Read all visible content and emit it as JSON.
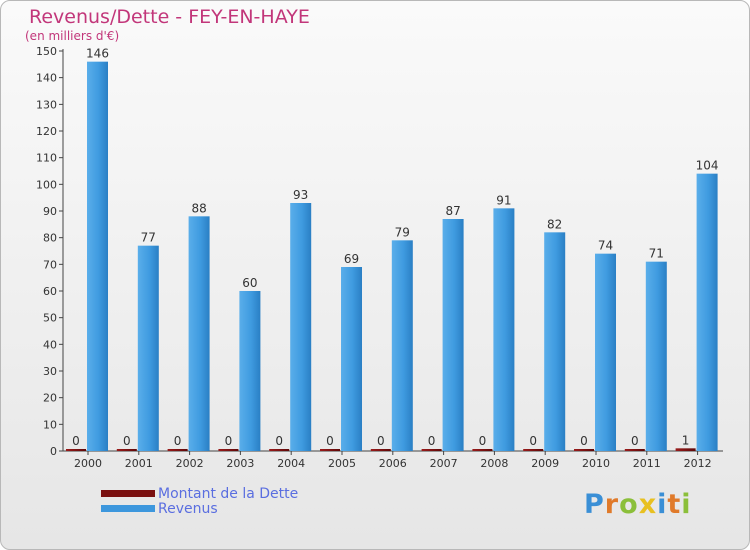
{
  "header": {
    "title": "Revenus/Dette - FEY-EN-HAYE",
    "subtitle": "(en milliers d'€)"
  },
  "colors": {
    "title": "#c2367a",
    "revenus": "#3d97dd",
    "dette": "#7a1010",
    "legend_text": "#5a6ee0"
  },
  "chart_data": {
    "type": "bar",
    "title": "Revenus/Dette - FEY-EN-HAYE",
    "ylabel": "(en milliers d'€)",
    "xlabel": "",
    "categories": [
      "2000",
      "2001",
      "2002",
      "2003",
      "2004",
      "2005",
      "2006",
      "2007",
      "2008",
      "2009",
      "2010",
      "2011",
      "2012"
    ],
    "series": [
      {
        "name": "Montant de la Dette",
        "values": [
          0,
          0,
          0,
          0,
          0,
          0,
          0,
          0,
          0,
          0,
          0,
          0,
          1
        ]
      },
      {
        "name": "Revenus",
        "values": [
          146,
          77,
          88,
          60,
          93,
          69,
          79,
          87,
          91,
          82,
          74,
          71,
          104
        ]
      }
    ],
    "ylim": [
      0,
      150
    ],
    "yticks": [
      0,
      10,
      20,
      30,
      40,
      50,
      60,
      70,
      80,
      90,
      100,
      110,
      120,
      130,
      140,
      150
    ],
    "grid": false,
    "legend": "bottom-left"
  },
  "legend": {
    "items": [
      {
        "label": "Montant de la Dette",
        "color": "#7a1010"
      },
      {
        "label": "Revenus",
        "color": "#3d97dd"
      }
    ]
  },
  "logo": {
    "letters": [
      "P",
      "r",
      "o",
      "x",
      "i",
      "t",
      "i"
    ],
    "colors": [
      "#3a8fd6",
      "#e07a2a",
      "#8bbf3a",
      "#e8c020",
      "#3a8fd6",
      "#e07a2a",
      "#8bbf3a"
    ]
  }
}
